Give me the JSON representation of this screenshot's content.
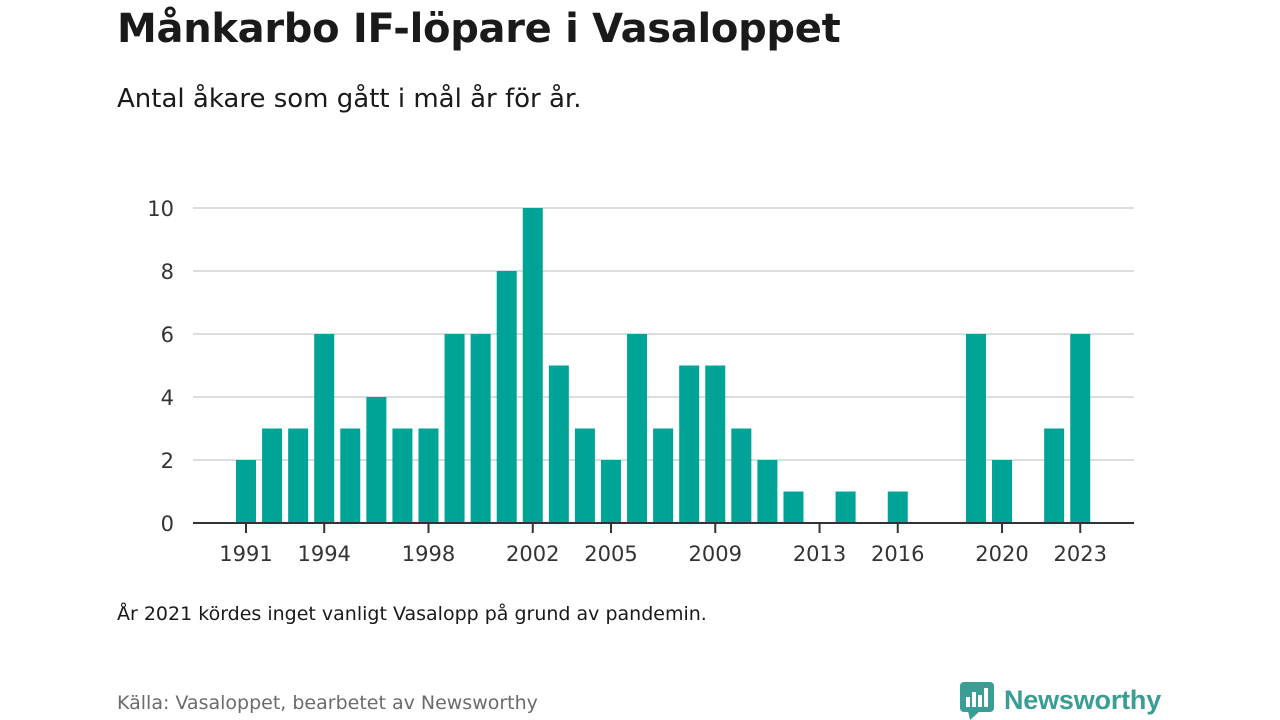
{
  "title": "Månkarbo IF-löpare i Vasaloppet",
  "subtitle": "Antal åkare som gått i mål år för år.",
  "note": "År 2021 kördes inget vanligt Vasalopp på grund av pandemin.",
  "source": "Källa: Vasaloppet, bearbetet av Newsworthy",
  "brand": {
    "name": "Newsworthy",
    "icon": "newsworthy-logo-icon",
    "color": "#3a9e95"
  },
  "colors": {
    "bar": "#00a497",
    "grid": "#dddddd",
    "axis": "#333333"
  },
  "chart_data": {
    "type": "bar",
    "categories": [
      1991,
      1992,
      1993,
      1994,
      1995,
      1996,
      1997,
      1998,
      1999,
      2000,
      2001,
      2002,
      2003,
      2004,
      2005,
      2006,
      2007,
      2008,
      2009,
      2010,
      2011,
      2012,
      2013,
      2014,
      2015,
      2016,
      2017,
      2018,
      2019,
      2020,
      2021,
      2022,
      2023
    ],
    "values": [
      2,
      3,
      3,
      6,
      3,
      4,
      3,
      3,
      6,
      6,
      8,
      10,
      5,
      3,
      2,
      6,
      3,
      5,
      5,
      3,
      2,
      1,
      0,
      1,
      0,
      1,
      0,
      0,
      6,
      2,
      0,
      3,
      6
    ],
    "x_tick_labels": [
      "1991",
      "1994",
      "1998",
      "2002",
      "2005",
      "2009",
      "2013",
      "2016",
      "2020",
      "2023"
    ],
    "y_ticks": [
      0,
      2,
      4,
      6,
      8,
      10
    ],
    "ylim": [
      0,
      10
    ],
    "grid": true,
    "xlabel": "",
    "ylabel": ""
  }
}
